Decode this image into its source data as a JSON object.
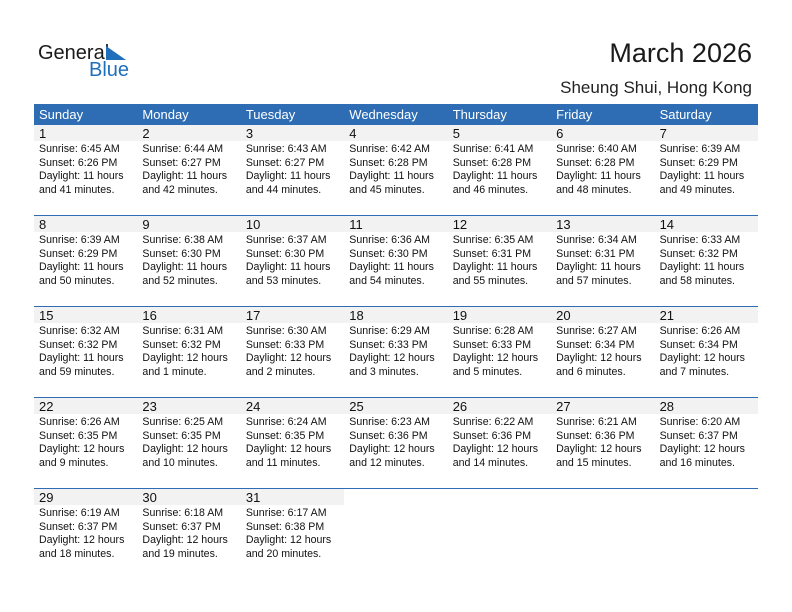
{
  "logo": {
    "line1": "General",
    "line2": "Blue"
  },
  "title": "March 2026",
  "location": "Sheung Shui, Hong Kong",
  "colors": {
    "header": "#2e6db4",
    "daynum_bg": "#f2f2f2"
  },
  "weekdays": [
    "Sunday",
    "Monday",
    "Tuesday",
    "Wednesday",
    "Thursday",
    "Friday",
    "Saturday"
  ],
  "days": [
    {
      "d": "1",
      "rise": "Sunrise: 6:45 AM",
      "set": "Sunset: 6:26 PM",
      "dl1": "Daylight: 11 hours",
      "dl2": "and 41 minutes."
    },
    {
      "d": "2",
      "rise": "Sunrise: 6:44 AM",
      "set": "Sunset: 6:27 PM",
      "dl1": "Daylight: 11 hours",
      "dl2": "and 42 minutes."
    },
    {
      "d": "3",
      "rise": "Sunrise: 6:43 AM",
      "set": "Sunset: 6:27 PM",
      "dl1": "Daylight: 11 hours",
      "dl2": "and 44 minutes."
    },
    {
      "d": "4",
      "rise": "Sunrise: 6:42 AM",
      "set": "Sunset: 6:28 PM",
      "dl1": "Daylight: 11 hours",
      "dl2": "and 45 minutes."
    },
    {
      "d": "5",
      "rise": "Sunrise: 6:41 AM",
      "set": "Sunset: 6:28 PM",
      "dl1": "Daylight: 11 hours",
      "dl2": "and 46 minutes."
    },
    {
      "d": "6",
      "rise": "Sunrise: 6:40 AM",
      "set": "Sunset: 6:28 PM",
      "dl1": "Daylight: 11 hours",
      "dl2": "and 48 minutes."
    },
    {
      "d": "7",
      "rise": "Sunrise: 6:39 AM",
      "set": "Sunset: 6:29 PM",
      "dl1": "Daylight: 11 hours",
      "dl2": "and 49 minutes."
    },
    {
      "d": "8",
      "rise": "Sunrise: 6:39 AM",
      "set": "Sunset: 6:29 PM",
      "dl1": "Daylight: 11 hours",
      "dl2": "and 50 minutes."
    },
    {
      "d": "9",
      "rise": "Sunrise: 6:38 AM",
      "set": "Sunset: 6:30 PM",
      "dl1": "Daylight: 11 hours",
      "dl2": "and 52 minutes."
    },
    {
      "d": "10",
      "rise": "Sunrise: 6:37 AM",
      "set": "Sunset: 6:30 PM",
      "dl1": "Daylight: 11 hours",
      "dl2": "and 53 minutes."
    },
    {
      "d": "11",
      "rise": "Sunrise: 6:36 AM",
      "set": "Sunset: 6:30 PM",
      "dl1": "Daylight: 11 hours",
      "dl2": "and 54 minutes."
    },
    {
      "d": "12",
      "rise": "Sunrise: 6:35 AM",
      "set": "Sunset: 6:31 PM",
      "dl1": "Daylight: 11 hours",
      "dl2": "and 55 minutes."
    },
    {
      "d": "13",
      "rise": "Sunrise: 6:34 AM",
      "set": "Sunset: 6:31 PM",
      "dl1": "Daylight: 11 hours",
      "dl2": "and 57 minutes."
    },
    {
      "d": "14",
      "rise": "Sunrise: 6:33 AM",
      "set": "Sunset: 6:32 PM",
      "dl1": "Daylight: 11 hours",
      "dl2": "and 58 minutes."
    },
    {
      "d": "15",
      "rise": "Sunrise: 6:32 AM",
      "set": "Sunset: 6:32 PM",
      "dl1": "Daylight: 11 hours",
      "dl2": "and 59 minutes."
    },
    {
      "d": "16",
      "rise": "Sunrise: 6:31 AM",
      "set": "Sunset: 6:32 PM",
      "dl1": "Daylight: 12 hours",
      "dl2": "and 1 minute."
    },
    {
      "d": "17",
      "rise": "Sunrise: 6:30 AM",
      "set": "Sunset: 6:33 PM",
      "dl1": "Daylight: 12 hours",
      "dl2": "and 2 minutes."
    },
    {
      "d": "18",
      "rise": "Sunrise: 6:29 AM",
      "set": "Sunset: 6:33 PM",
      "dl1": "Daylight: 12 hours",
      "dl2": "and 3 minutes."
    },
    {
      "d": "19",
      "rise": "Sunrise: 6:28 AM",
      "set": "Sunset: 6:33 PM",
      "dl1": "Daylight: 12 hours",
      "dl2": "and 5 minutes."
    },
    {
      "d": "20",
      "rise": "Sunrise: 6:27 AM",
      "set": "Sunset: 6:34 PM",
      "dl1": "Daylight: 12 hours",
      "dl2": "and 6 minutes."
    },
    {
      "d": "21",
      "rise": "Sunrise: 6:26 AM",
      "set": "Sunset: 6:34 PM",
      "dl1": "Daylight: 12 hours",
      "dl2": "and 7 minutes."
    },
    {
      "d": "22",
      "rise": "Sunrise: 6:26 AM",
      "set": "Sunset: 6:35 PM",
      "dl1": "Daylight: 12 hours",
      "dl2": "and 9 minutes."
    },
    {
      "d": "23",
      "rise": "Sunrise: 6:25 AM",
      "set": "Sunset: 6:35 PM",
      "dl1": "Daylight: 12 hours",
      "dl2": "and 10 minutes."
    },
    {
      "d": "24",
      "rise": "Sunrise: 6:24 AM",
      "set": "Sunset: 6:35 PM",
      "dl1": "Daylight: 12 hours",
      "dl2": "and 11 minutes."
    },
    {
      "d": "25",
      "rise": "Sunrise: 6:23 AM",
      "set": "Sunset: 6:36 PM",
      "dl1": "Daylight: 12 hours",
      "dl2": "and 12 minutes."
    },
    {
      "d": "26",
      "rise": "Sunrise: 6:22 AM",
      "set": "Sunset: 6:36 PM",
      "dl1": "Daylight: 12 hours",
      "dl2": "and 14 minutes."
    },
    {
      "d": "27",
      "rise": "Sunrise: 6:21 AM",
      "set": "Sunset: 6:36 PM",
      "dl1": "Daylight: 12 hours",
      "dl2": "and 15 minutes."
    },
    {
      "d": "28",
      "rise": "Sunrise: 6:20 AM",
      "set": "Sunset: 6:37 PM",
      "dl1": "Daylight: 12 hours",
      "dl2": "and 16 minutes."
    },
    {
      "d": "29",
      "rise": "Sunrise: 6:19 AM",
      "set": "Sunset: 6:37 PM",
      "dl1": "Daylight: 12 hours",
      "dl2": "and 18 minutes."
    },
    {
      "d": "30",
      "rise": "Sunrise: 6:18 AM",
      "set": "Sunset: 6:37 PM",
      "dl1": "Daylight: 12 hours",
      "dl2": "and 19 minutes."
    },
    {
      "d": "31",
      "rise": "Sunrise: 6:17 AM",
      "set": "Sunset: 6:38 PM",
      "dl1": "Daylight: 12 hours",
      "dl2": "and 20 minutes."
    }
  ]
}
